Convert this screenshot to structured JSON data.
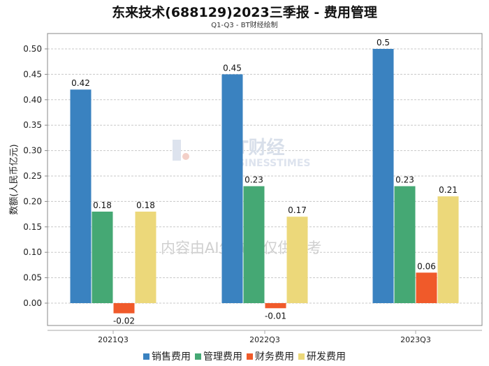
{
  "title": "东来技术(688129)2023三季报 - 费用管理",
  "subtitle": "Q1-Q3 - BT财经绘制",
  "watermark": {
    "logo": "BT财经",
    "logo_sub": "BUSINESSTIMES",
    "notice": "内容由AI生成，仅供参考"
  },
  "chart_data": {
    "type": "bar",
    "title": "东来技术(688129)2023三季报 - 费用管理",
    "xlabel": "",
    "ylabel": "数额(人民币亿元)",
    "ylim": [
      -0.044,
      0.53
    ],
    "yticks": [
      "0.00",
      "0.05",
      "0.10",
      "0.15",
      "0.20",
      "0.25",
      "0.30",
      "0.35",
      "0.40",
      "0.45",
      "0.50"
    ],
    "grid": true,
    "legend_position": "bottom",
    "categories": [
      "2021Q3",
      "2022Q3",
      "2023Q3"
    ],
    "series": [
      {
        "name": "销售费用",
        "color": "#3a82c0",
        "values": [
          0.42,
          0.45,
          0.5
        ],
        "labels": [
          "0.42",
          "0.45",
          "0.5"
        ]
      },
      {
        "name": "管理费用",
        "color": "#45a874",
        "values": [
          0.18,
          0.23,
          0.23
        ],
        "labels": [
          "0.18",
          "0.23",
          "0.23"
        ]
      },
      {
        "name": "财务费用",
        "color": "#f05a2a",
        "values": [
          -0.02,
          -0.01,
          0.06
        ],
        "labels": [
          "-0.02",
          "-0.01",
          "0.06"
        ]
      },
      {
        "name": "研发费用",
        "color": "#ecd87a",
        "values": [
          0.18,
          0.17,
          0.21
        ],
        "labels": [
          "0.18",
          "0.17",
          "0.21"
        ]
      }
    ]
  }
}
